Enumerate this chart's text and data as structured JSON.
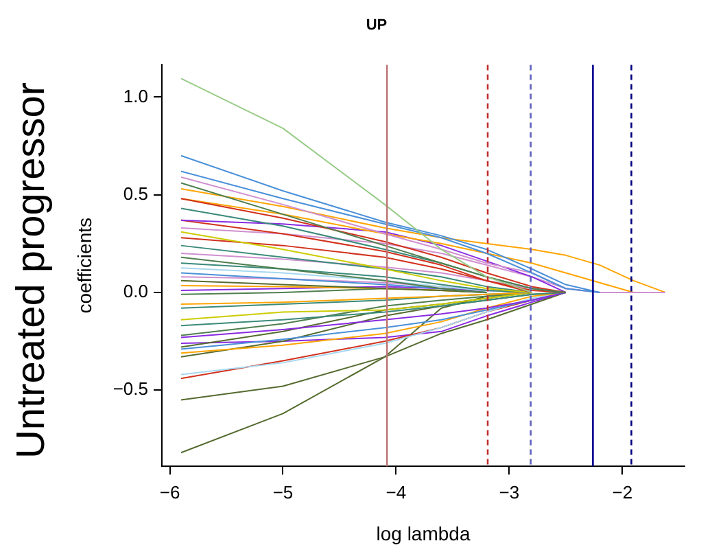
{
  "chart_data": {
    "type": "line",
    "title": "UP",
    "xlabel": "log lambda",
    "ylabel": "coefficients",
    "annotations": [
      "Untreated progressor"
    ],
    "x": [
      -5.9,
      -5.0,
      -4.1,
      -3.6,
      -3.2,
      -2.8,
      -2.5,
      -2.2,
      -1.9,
      -1.62
    ],
    "xlim": [
      -6.07,
      -1.45
    ],
    "xticks": [
      -6,
      -5,
      -4,
      -3,
      -2
    ],
    "ylim": [
      -0.89,
      1.165
    ],
    "yticks": [
      -0.5,
      {
        "value": 0,
        "label": "0.0"
      },
      0.5,
      {
        "value": 1,
        "label": "1.0"
      }
    ],
    "grid": false,
    "legend": false,
    "marker": "none",
    "line_style": "solid",
    "ref_lines": [
      {
        "axis": "x",
        "value": -4.08,
        "color": "#c07878",
        "line_style": "solid"
      },
      {
        "axis": "x",
        "value": -3.19,
        "color": "#c03030",
        "line_style": "dashed"
      },
      {
        "axis": "x",
        "value": -2.81,
        "color": "#6060c0",
        "line_style": "dashed"
      },
      {
        "axis": "x",
        "value": -2.26,
        "color": "#00008b",
        "line_style": "solid"
      },
      {
        "axis": "x",
        "value": -1.92,
        "color": "#000080",
        "line_style": "dashed"
      }
    ],
    "series": [
      {
        "color": "#99cc88",
        "values": [
          1.095,
          0.84,
          0.45,
          0.22,
          0.08,
          0,
          null,
          null,
          null,
          null
        ]
      },
      {
        "color": "#4a90d9",
        "values": [
          0.7,
          0.52,
          0.36,
          0.29,
          0.22,
          0.12,
          0.04,
          0,
          null,
          null
        ]
      },
      {
        "color": "#4a90d9",
        "values": [
          0.62,
          0.48,
          0.35,
          0.28,
          0.2,
          0.1,
          0.02,
          0,
          null,
          null
        ]
      },
      {
        "color": "#d090d0",
        "values": [
          0.59,
          0.45,
          0.3,
          0.22,
          0.15,
          0.1,
          0.02,
          0,
          0,
          0
        ]
      },
      {
        "color": "#4f7f4f",
        "values": [
          0.56,
          0.4,
          0.24,
          0.15,
          0.08,
          0.02,
          0,
          null,
          null,
          null
        ]
      },
      {
        "color": "#ffa500",
        "values": [
          0.53,
          0.44,
          0.33,
          0.28,
          0.25,
          0.22,
          0.19,
          0.14,
          0.06,
          0
        ]
      },
      {
        "color": "#d2321e",
        "values": [
          0.48,
          0.38,
          0.26,
          0.18,
          0.1,
          0.03,
          0,
          null,
          null,
          null
        ]
      },
      {
        "color": "#ffa500",
        "values": [
          0.48,
          0.4,
          0.3,
          0.25,
          0.2,
          0.15,
          0.1,
          0.05,
          0,
          null
        ]
      },
      {
        "color": "#3a8a7a",
        "values": [
          0.43,
          0.34,
          0.22,
          0.15,
          0.08,
          0.02,
          0,
          null,
          null,
          null
        ]
      },
      {
        "color": "#8a2be2",
        "values": [
          0.37,
          0.35,
          0.31,
          0.24,
          0.16,
          0.08,
          0,
          null,
          null,
          null
        ]
      },
      {
        "color": "#d2321e",
        "values": [
          0.37,
          0.3,
          0.21,
          0.14,
          0.06,
          0,
          null,
          null,
          null,
          null
        ]
      },
      {
        "color": "#d090d0",
        "values": [
          0.33,
          0.3,
          0.25,
          0.2,
          0.14,
          0.08,
          0.02,
          0,
          null,
          null
        ]
      },
      {
        "color": "#cccc00",
        "values": [
          0.31,
          0.22,
          0.12,
          0.06,
          0.02,
          0,
          null,
          null,
          null,
          null
        ]
      },
      {
        "color": "#d2321e",
        "values": [
          0.28,
          0.24,
          0.18,
          0.12,
          0.06,
          0.01,
          0,
          null,
          null,
          null
        ]
      },
      {
        "color": "#3a8a7a",
        "values": [
          0.24,
          0.18,
          0.12,
          0.08,
          0.03,
          0,
          null,
          null,
          null,
          null
        ]
      },
      {
        "color": "#d090d0",
        "values": [
          0.2,
          0.17,
          0.13,
          0.1,
          0.06,
          0.02,
          0,
          null,
          null,
          null
        ]
      },
      {
        "color": "#4f7f4f",
        "values": [
          0.18,
          0.12,
          0.06,
          0.02,
          0,
          null,
          null,
          null,
          null,
          null
        ]
      },
      {
        "color": "#3a8a7a",
        "values": [
          0.15,
          0.12,
          0.08,
          0.04,
          0.01,
          0,
          null,
          null,
          null,
          null
        ]
      },
      {
        "color": "#a6d8f0",
        "values": [
          0.125,
          0.1,
          0.06,
          0.03,
          0.01,
          0,
          null,
          null,
          null,
          null
        ]
      },
      {
        "color": "#4a90d9",
        "values": [
          0.1,
          0.07,
          0.04,
          0.02,
          0,
          null,
          null,
          null,
          null,
          null
        ]
      },
      {
        "color": "#d090d0",
        "values": [
          0.08,
          0.07,
          0.05,
          0.03,
          0.01,
          0,
          null,
          null,
          null,
          null
        ]
      },
      {
        "color": "#556b2f",
        "values": [
          0.06,
          0.04,
          0.02,
          0.01,
          0,
          null,
          null,
          null,
          null,
          null
        ]
      },
      {
        "color": "#ffa500",
        "values": [
          0.035,
          0.03,
          0.02,
          0.01,
          0,
          null,
          null,
          null,
          null,
          null
        ]
      },
      {
        "color": "#8a2be2",
        "values": [
          0.01,
          0.02,
          0.03,
          0.02,
          0.01,
          0,
          null,
          null,
          null,
          null
        ]
      },
      {
        "color": "#4f7f4f",
        "values": [
          -0.01,
          0,
          0.02,
          0.01,
          0,
          null,
          null,
          null,
          null,
          null
        ]
      },
      {
        "color": "#ffa500",
        "values": [
          -0.06,
          -0.05,
          -0.03,
          -0.02,
          -0.01,
          0,
          null,
          null,
          null,
          null
        ]
      },
      {
        "color": "#3a8a7a",
        "values": [
          -0.08,
          -0.06,
          -0.04,
          -0.02,
          -0.01,
          0,
          null,
          null,
          null,
          null
        ]
      },
      {
        "color": "#cccc00",
        "values": [
          -0.14,
          -0.1,
          -0.09,
          -0.06,
          -0.03,
          0,
          null,
          null,
          null,
          null
        ]
      },
      {
        "color": "#3a8a7a",
        "values": [
          -0.17,
          -0.14,
          -0.1,
          -0.07,
          -0.04,
          -0.01,
          0,
          null,
          null,
          null
        ]
      },
      {
        "color": "#4f7f4f",
        "values": [
          -0.22,
          -0.16,
          -0.07,
          -0.04,
          -0.02,
          0,
          null,
          null,
          null,
          null
        ]
      },
      {
        "color": "#8a2be2",
        "values": [
          -0.23,
          -0.19,
          -0.14,
          -0.11,
          -0.08,
          -0.04,
          0,
          null,
          null,
          null
        ]
      },
      {
        "color": "#556b2f",
        "values": [
          -0.28,
          -0.2,
          -0.09,
          -0.06,
          -0.03,
          0,
          null,
          null,
          null,
          null
        ]
      },
      {
        "color": "#4a90d9",
        "values": [
          -0.29,
          -0.24,
          -0.18,
          -0.14,
          -0.09,
          -0.04,
          0,
          null,
          null,
          null
        ]
      },
      {
        "color": "#ffa500",
        "values": [
          -0.31,
          -0.27,
          -0.21,
          -0.15,
          -0.08,
          -0.02,
          0,
          null,
          null,
          null
        ]
      },
      {
        "color": "#556b2f",
        "values": [
          -0.33,
          -0.25,
          -0.12,
          -0.07,
          -0.04,
          -0.01,
          0,
          null,
          null,
          null
        ]
      },
      {
        "color": "#a6d8f0",
        "values": [
          -0.42,
          -0.36,
          -0.26,
          -0.18,
          -0.1,
          -0.03,
          0,
          null,
          null,
          null
        ]
      },
      {
        "color": "#d2321e",
        "values": [
          -0.44,
          -0.35,
          -0.25,
          -0.18,
          -0.1,
          -0.04,
          0,
          null,
          null,
          null
        ]
      },
      {
        "color": "#556b2f",
        "values": [
          -0.55,
          -0.48,
          -0.33,
          -0.21,
          -0.14,
          -0.06,
          0,
          null,
          null,
          null
        ]
      },
      {
        "color": "#556b2f",
        "values": [
          -0.82,
          -0.62,
          -0.33,
          -0.08,
          -0.02,
          0,
          null,
          null,
          null,
          null
        ]
      },
      {
        "color": "#8a2be2",
        "values": [
          -0.26,
          -0.25,
          -0.23,
          -0.2,
          -0.12,
          -0.05,
          0,
          null,
          null,
          null
        ]
      }
    ]
  }
}
